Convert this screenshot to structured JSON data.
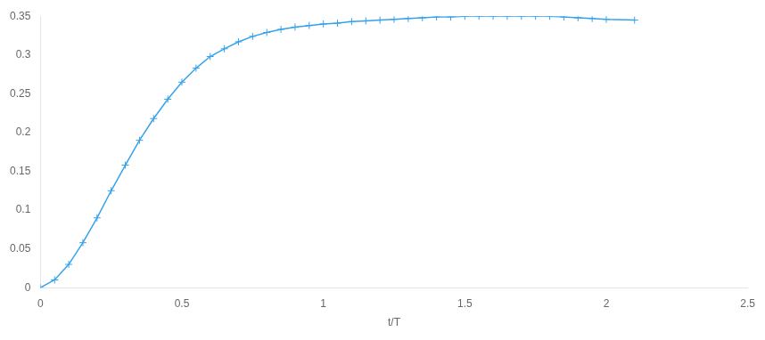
{
  "chart_data": {
    "type": "line",
    "x": [
      0.0,
      0.05,
      0.1,
      0.15,
      0.2,
      0.25,
      0.3,
      0.35,
      0.4,
      0.45,
      0.5,
      0.55,
      0.6,
      0.65,
      0.7,
      0.75,
      0.8,
      0.85,
      0.9,
      0.95,
      1.0,
      1.05,
      1.1,
      1.15,
      1.2,
      1.25,
      1.3,
      1.35,
      1.4,
      1.45,
      1.5,
      1.55,
      1.6,
      1.65,
      1.7,
      1.75,
      1.8,
      1.85,
      1.9,
      1.95,
      2.0,
      2.1
    ],
    "values": [
      0.0,
      0.01,
      0.03,
      0.058,
      0.09,
      0.125,
      0.158,
      0.19,
      0.218,
      0.243,
      0.265,
      0.283,
      0.298,
      0.308,
      0.317,
      0.324,
      0.329,
      0.333,
      0.336,
      0.338,
      0.34,
      0.341,
      0.343,
      0.344,
      0.345,
      0.346,
      0.347,
      0.348,
      0.349,
      0.349,
      0.35,
      0.35,
      0.35,
      0.35,
      0.35,
      0.35,
      0.35,
      0.349,
      0.348,
      0.347,
      0.346,
      0.345
    ],
    "xlim": [
      0,
      2.5
    ],
    "ylim": [
      0,
      0.35
    ],
    "xticks": [
      0,
      0.5,
      1,
      1.5,
      2,
      2.5
    ],
    "yticks": [
      0,
      0.05,
      0.1,
      0.15,
      0.2,
      0.25,
      0.3,
      0.35
    ],
    "xlabel": "t/T",
    "marker": "plus",
    "grid": false
  }
}
